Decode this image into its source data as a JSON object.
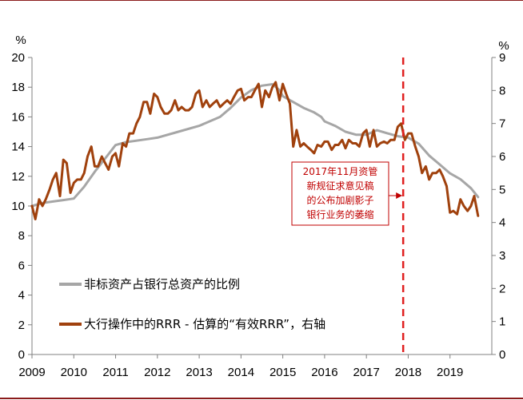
{
  "chart_data": {
    "type": "line",
    "x_ticks": [
      "2009",
      "2010",
      "2011",
      "2012",
      "2013",
      "2014",
      "2015",
      "2016",
      "2017",
      "2018",
      "2019"
    ],
    "y_left": {
      "unit": "%",
      "range": [
        0,
        20
      ],
      "ticks": [
        "0",
        "2",
        "4",
        "6",
        "8",
        "10",
        "12",
        "14",
        "16",
        "18",
        "20"
      ]
    },
    "y_right": {
      "unit": "%",
      "range": [
        0,
        9
      ],
      "ticks": [
        "0",
        "1",
        "2",
        "3",
        "4",
        "5",
        "6",
        "7",
        "8",
        "9"
      ]
    },
    "grid": false,
    "series": [
      {
        "name": "非标资产占银行总资产的比例",
        "axis": "left",
        "color": "#a6a6a6",
        "points": [
          [
            2009.0,
            10.0
          ],
          [
            2009.25,
            10.2
          ],
          [
            2009.5,
            10.3
          ],
          [
            2009.75,
            10.4
          ],
          [
            2010.0,
            10.5
          ],
          [
            2010.25,
            11.3
          ],
          [
            2010.5,
            12.3
          ],
          [
            2010.75,
            13.2
          ],
          [
            2011.0,
            14.1
          ],
          [
            2011.25,
            14.3
          ],
          [
            2011.5,
            14.4
          ],
          [
            2011.75,
            14.5
          ],
          [
            2012.0,
            14.6
          ],
          [
            2012.5,
            15.0
          ],
          [
            2013.0,
            15.4
          ],
          [
            2013.5,
            16.0
          ],
          [
            2013.75,
            16.6
          ],
          [
            2014.0,
            17.3
          ],
          [
            2014.25,
            17.8
          ],
          [
            2014.5,
            18.1
          ],
          [
            2014.75,
            18.2
          ],
          [
            2014.92,
            17.8
          ],
          [
            2015.0,
            17.4
          ],
          [
            2015.25,
            17.0
          ],
          [
            2015.5,
            16.6
          ],
          [
            2015.75,
            16.3
          ],
          [
            2015.92,
            16.0
          ],
          [
            2016.0,
            15.7
          ],
          [
            2016.25,
            15.4
          ],
          [
            2016.5,
            15.0
          ],
          [
            2016.75,
            14.8
          ],
          [
            2017.0,
            14.8
          ],
          [
            2017.25,
            15.1
          ],
          [
            2017.5,
            14.9
          ],
          [
            2017.75,
            14.7
          ],
          [
            2018.0,
            14.6
          ],
          [
            2018.25,
            14.2
          ],
          [
            2018.5,
            13.4
          ],
          [
            2018.75,
            12.8
          ],
          [
            2019.0,
            12.2
          ],
          [
            2019.25,
            11.8
          ],
          [
            2019.5,
            11.2
          ],
          [
            2019.67,
            10.6
          ]
        ]
      },
      {
        "name": "大行操作中的RRR - 估算的“有效RRR”，右轴",
        "axis": "right",
        "color": "#a0410d",
        "points": [
          [
            2009.0,
            4.5
          ],
          [
            2009.08,
            4.1
          ],
          [
            2009.17,
            4.7
          ],
          [
            2009.25,
            4.5
          ],
          [
            2009.33,
            4.7
          ],
          [
            2009.42,
            5.0
          ],
          [
            2009.5,
            5.3
          ],
          [
            2009.58,
            5.5
          ],
          [
            2009.67,
            4.8
          ],
          [
            2009.75,
            5.9
          ],
          [
            2009.83,
            5.8
          ],
          [
            2009.92,
            4.9
          ],
          [
            2010.0,
            5.2
          ],
          [
            2010.08,
            5.3
          ],
          [
            2010.17,
            5.3
          ],
          [
            2010.25,
            5.5
          ],
          [
            2010.33,
            6.0
          ],
          [
            2010.42,
            6.3
          ],
          [
            2010.5,
            5.7
          ],
          [
            2010.58,
            5.7
          ],
          [
            2010.67,
            6.0
          ],
          [
            2010.75,
            5.8
          ],
          [
            2010.83,
            5.6
          ],
          [
            2010.92,
            6.0
          ],
          [
            2011.0,
            6.1
          ],
          [
            2011.08,
            5.7
          ],
          [
            2011.17,
            6.4
          ],
          [
            2011.25,
            6.3
          ],
          [
            2011.33,
            6.7
          ],
          [
            2011.42,
            6.7
          ],
          [
            2011.5,
            7.0
          ],
          [
            2011.58,
            7.2
          ],
          [
            2011.67,
            7.65
          ],
          [
            2011.75,
            7.65
          ],
          [
            2011.83,
            7.3
          ],
          [
            2011.92,
            7.9
          ],
          [
            2012.0,
            7.8
          ],
          [
            2012.08,
            7.5
          ],
          [
            2012.17,
            7.3
          ],
          [
            2012.25,
            7.3
          ],
          [
            2012.33,
            7.4
          ],
          [
            2012.42,
            7.7
          ],
          [
            2012.5,
            7.4
          ],
          [
            2012.58,
            7.5
          ],
          [
            2012.67,
            7.4
          ],
          [
            2012.75,
            7.4
          ],
          [
            2012.83,
            7.5
          ],
          [
            2012.92,
            7.9
          ],
          [
            2013.0,
            8.0
          ],
          [
            2013.08,
            7.5
          ],
          [
            2013.17,
            7.7
          ],
          [
            2013.25,
            7.5
          ],
          [
            2013.33,
            7.6
          ],
          [
            2013.42,
            7.7
          ],
          [
            2013.5,
            7.5
          ],
          [
            2013.58,
            7.6
          ],
          [
            2013.67,
            7.7
          ],
          [
            2013.75,
            7.6
          ],
          [
            2013.83,
            7.8
          ],
          [
            2013.92,
            8.0
          ],
          [
            2014.0,
            8.05
          ],
          [
            2014.08,
            7.7
          ],
          [
            2014.17,
            7.8
          ],
          [
            2014.25,
            7.8
          ],
          [
            2014.33,
            8.0
          ],
          [
            2014.42,
            8.2
          ],
          [
            2014.5,
            7.5
          ],
          [
            2014.58,
            8.0
          ],
          [
            2014.67,
            7.8
          ],
          [
            2014.75,
            8.1
          ],
          [
            2014.83,
            8.25
          ],
          [
            2014.92,
            7.7
          ],
          [
            2015.0,
            8.2
          ],
          [
            2015.08,
            7.9
          ],
          [
            2015.17,
            7.6
          ],
          [
            2015.25,
            6.3
          ],
          [
            2015.33,
            6.8
          ],
          [
            2015.42,
            6.3
          ],
          [
            2015.5,
            6.4
          ],
          [
            2015.58,
            6.3
          ],
          [
            2015.67,
            6.2
          ],
          [
            2015.75,
            6.1
          ],
          [
            2015.83,
            6.35
          ],
          [
            2015.92,
            6.3
          ],
          [
            2016.0,
            6.45
          ],
          [
            2016.08,
            6.45
          ],
          [
            2016.17,
            6.2
          ],
          [
            2016.25,
            6.35
          ],
          [
            2016.33,
            6.35
          ],
          [
            2016.42,
            6.5
          ],
          [
            2016.5,
            6.25
          ],
          [
            2016.58,
            6.5
          ],
          [
            2016.67,
            6.4
          ],
          [
            2016.75,
            6.4
          ],
          [
            2016.83,
            6.3
          ],
          [
            2016.92,
            6.7
          ],
          [
            2017.0,
            6.8
          ],
          [
            2017.08,
            6.3
          ],
          [
            2017.17,
            6.8
          ],
          [
            2017.25,
            6.3
          ],
          [
            2017.33,
            6.4
          ],
          [
            2017.42,
            6.45
          ],
          [
            2017.5,
            6.4
          ],
          [
            2017.58,
            6.5
          ],
          [
            2017.67,
            6.5
          ],
          [
            2017.75,
            6.9
          ],
          [
            2017.83,
            7.0
          ],
          [
            2017.92,
            6.5
          ],
          [
            2018.0,
            6.7
          ],
          [
            2018.08,
            6.7
          ],
          [
            2018.17,
            6.3
          ],
          [
            2018.25,
            6.0
          ],
          [
            2018.33,
            5.5
          ],
          [
            2018.42,
            5.7
          ],
          [
            2018.5,
            5.3
          ],
          [
            2018.58,
            5.5
          ],
          [
            2018.67,
            5.5
          ],
          [
            2018.75,
            5.6
          ],
          [
            2018.83,
            5.4
          ],
          [
            2018.92,
            5.1
          ],
          [
            2019.0,
            4.3
          ],
          [
            2019.08,
            4.35
          ],
          [
            2019.17,
            4.25
          ],
          [
            2019.25,
            4.7
          ],
          [
            2019.33,
            4.5
          ],
          [
            2019.42,
            4.35
          ],
          [
            2019.5,
            4.5
          ],
          [
            2019.58,
            4.8
          ],
          [
            2019.67,
            4.2
          ]
        ]
      }
    ],
    "vline": {
      "x": 2017.88,
      "color": "#e02020"
    },
    "annotation": {
      "lines": [
        "2017年11月资管",
        "新规征求意见稿",
        "的公布加剧影子",
        "银行业务的萎缩"
      ],
      "color": "#c00000"
    },
    "legend": {
      "placement": "lower-left",
      "entries": [
        "非标资产占银行总资产的比例",
        "大行操作中的RRR - 估算的“有效RRR”，右轴"
      ]
    }
  }
}
